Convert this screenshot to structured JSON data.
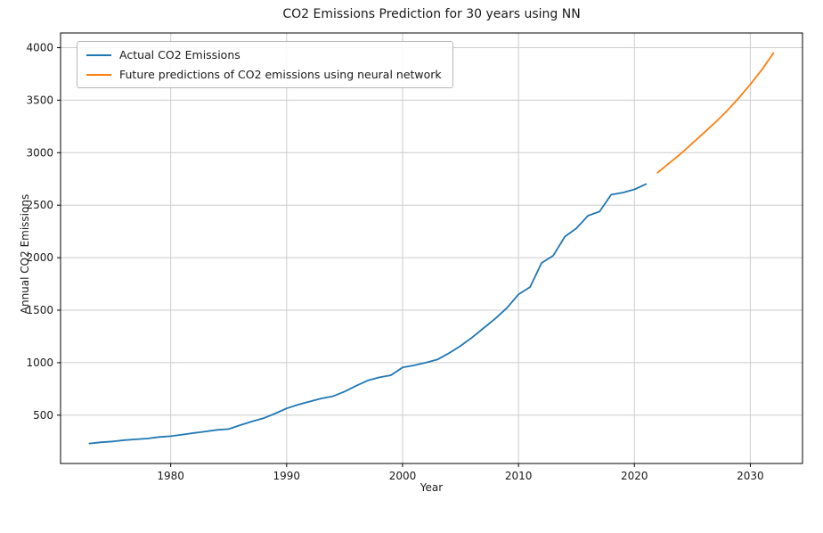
{
  "chart_data": {
    "type": "line",
    "title": "CO2 Emissions Prediction for 30 years using NN",
    "xlabel": "Year",
    "ylabel": "Annual CO2 Emissions",
    "xlim": [
      1970.5,
      2034.5
    ],
    "ylim": [
      40,
      4140
    ],
    "xticks": [
      1980,
      1990,
      2000,
      2010,
      2020,
      2030
    ],
    "yticks": [
      500,
      1000,
      1500,
      2000,
      2500,
      3000,
      3500,
      4000
    ],
    "grid": true,
    "legend_position": "upper left",
    "grid_color": "#cccccc",
    "spine_color": "#000000",
    "series": [
      {
        "name": "Actual CO2 Emissions",
        "color": "#1f77b4",
        "x": [
          1973,
          1974,
          1975,
          1976,
          1977,
          1978,
          1979,
          1980,
          1981,
          1982,
          1983,
          1984,
          1985,
          1986,
          1987,
          1988,
          1989,
          1990,
          1991,
          1992,
          1993,
          1994,
          1995,
          1996,
          1997,
          1998,
          1999,
          2000,
          2001,
          2002,
          2003,
          2004,
          2005,
          2006,
          2007,
          2008,
          2009,
          2010,
          2011,
          2012,
          2013,
          2014,
          2015,
          2016,
          2017,
          2018,
          2019,
          2020,
          2021
        ],
        "values": [
          230,
          242,
          250,
          262,
          270,
          278,
          292,
          300,
          315,
          330,
          345,
          360,
          368,
          405,
          440,
          470,
          515,
          565,
          600,
          630,
          660,
          680,
          725,
          780,
          830,
          860,
          880,
          955,
          975,
          1000,
          1030,
          1090,
          1160,
          1240,
          1330,
          1420,
          1520,
          1650,
          1720,
          1950,
          2020,
          2200,
          2280,
          2400,
          2440,
          2600,
          2620,
          2650,
          2700
        ]
      },
      {
        "name": "Future predictions of CO2 emissions using neural network",
        "color": "#ff7f0e",
        "x": [
          2022,
          2023,
          2024,
          2025,
          2026,
          2027,
          2028,
          2029,
          2030,
          2031,
          2032
        ],
        "values": [
          2810,
          2900,
          2990,
          3090,
          3190,
          3290,
          3400,
          3520,
          3650,
          3790,
          3950
        ]
      }
    ]
  }
}
